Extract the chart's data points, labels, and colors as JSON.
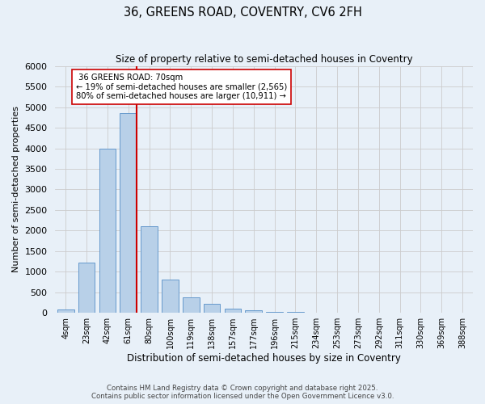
{
  "title": "36, GREENS ROAD, COVENTRY, CV6 2FH",
  "subtitle": "Size of property relative to semi-detached houses in Coventry",
  "xlabel": "Distribution of semi-detached houses by size in Coventry",
  "ylabel": "Number of semi-detached properties",
  "bin_labels": [
    "4sqm",
    "23sqm",
    "42sqm",
    "61sqm",
    "80sqm",
    "100sqm",
    "119sqm",
    "138sqm",
    "157sqm",
    "177sqm",
    "196sqm",
    "215sqm",
    "234sqm",
    "253sqm",
    "273sqm",
    "292sqm",
    "311sqm",
    "330sqm",
    "369sqm",
    "388sqm"
  ],
  "bar_values": [
    75,
    1220,
    4000,
    4850,
    2100,
    800,
    380,
    215,
    110,
    55,
    20,
    15,
    10,
    0,
    0,
    0,
    0,
    0,
    0,
    0
  ],
  "bar_color": "#b8d0e8",
  "bar_edge_color": "#6699cc",
  "vline_color": "#cc0000",
  "property_label": "36 GREENS ROAD: 70sqm",
  "pct_smaller": 19,
  "count_smaller": 2565,
  "pct_larger": 80,
  "count_larger": 10911,
  "annotation_box_color": "#ffffff",
  "annotation_box_edge": "#cc0000",
  "ylim": [
    0,
    6000
  ],
  "yticks": [
    0,
    500,
    1000,
    1500,
    2000,
    2500,
    3000,
    3500,
    4000,
    4500,
    5000,
    5500,
    6000
  ],
  "grid_color": "#cccccc",
  "bg_color": "#e8f0f8",
  "footnote1": "Contains HM Land Registry data © Crown copyright and database right 2025.",
  "footnote2": "Contains public sector information licensed under the Open Government Licence v3.0."
}
